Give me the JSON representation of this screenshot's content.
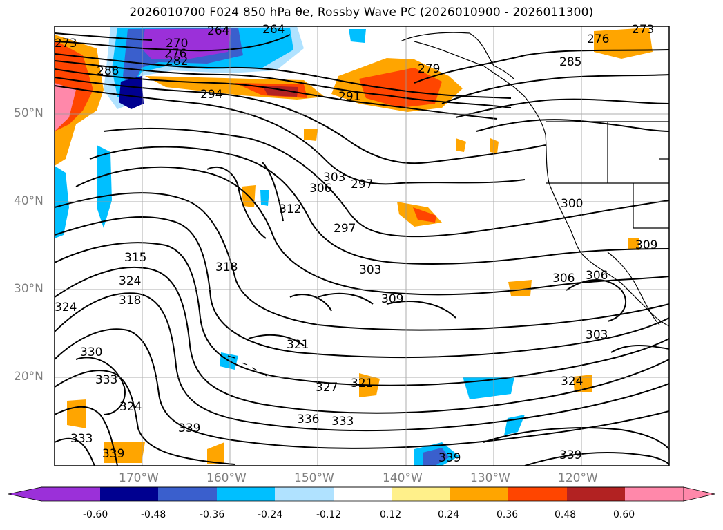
{
  "title": "2026010700 F024 850 hPa θe, Rossby Wave PC (2026010900 - 2026011300)",
  "lat_labels": [
    "50°N",
    "40°N",
    "30°N",
    "20°N"
  ],
  "lon_labels": [
    "170°W",
    "160°W",
    "150°W",
    "140°W",
    "130°W",
    "120°W"
  ],
  "contour_labels": [
    "264",
    "264",
    "270",
    "276",
    "282",
    "288",
    "294",
    "273",
    "291",
    "279",
    "285",
    "276",
    "273",
    "303",
    "297",
    "306",
    "312",
    "297",
    "315",
    "318",
    "324",
    "324",
    "318",
    "303",
    "309",
    "300",
    "306",
    "306",
    "309",
    "303",
    "321",
    "321",
    "327",
    "324",
    "330",
    "333",
    "324",
    "333",
    "336",
    "333",
    "339",
    "339",
    "339",
    "339"
  ],
  "colorbar": {
    "tick_labels": [
      "-0.60",
      "-0.48",
      "-0.36",
      "-0.24",
      "-0.12",
      "0.12",
      "0.24",
      "0.36",
      "0.48",
      "0.60"
    ],
    "colors": [
      "#9b30d9",
      "#000090",
      "#3a5fcd",
      "#00bfff",
      "#b0e2ff",
      "#ffffff",
      "#fff08a",
      "#ffa500",
      "#ff4500",
      "#b22222",
      "#ff88aa"
    ]
  }
}
